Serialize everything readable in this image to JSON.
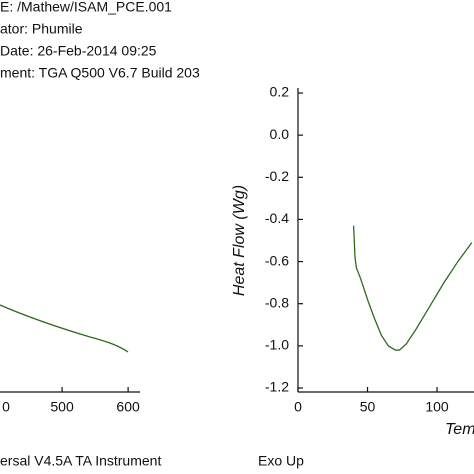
{
  "header": {
    "lines": [
      "E: /Mathew/ISAM_PCE.001",
      "ator: Phumile",
      "Date: 26-Feb-2014 09:25",
      "ment: TGA Q500 V6.7 Build 203"
    ]
  },
  "chart_data": [
    {
      "type": "line",
      "xlim": [
        406,
        618
      ],
      "xticks": [
        {
          "value": 400,
          "label": "0"
        },
        500,
        600
      ]
    },
    {
      "type": "line",
      "ylabel": "Heat Flow (Wg)",
      "xlabel": "Tem",
      "x": [
        40,
        41,
        42,
        45,
        50,
        55,
        60,
        65,
        70,
        73,
        78,
        85,
        95,
        105,
        115,
        125
      ],
      "series": [
        {
          "name": "Heat Flow",
          "color": "#2e6b1f",
          "values": [
            -0.43,
            -0.58,
            -0.63,
            -0.68,
            -0.78,
            -0.87,
            -0.95,
            -1.0,
            -1.02,
            -1.02,
            -0.99,
            -0.92,
            -0.81,
            -0.7,
            -0.6,
            -0.51
          ]
        }
      ],
      "xlim": [
        0,
        126.6
      ],
      "xticks": [
        0,
        50,
        100
      ],
      "ylim": [
        -1.2,
        0.2
      ],
      "yticks": [
        0.2,
        {
          "value": 0,
          "label": "0.0"
        },
        -0.2,
        -0.4,
        -0.6,
        -0.8,
        {
          "value": -1,
          "label": "-1.0"
        },
        -1.2
      ]
    }
  ],
  "footer": {
    "left": "ersal V4.5A TA Instrument",
    "right": "Exo Up"
  }
}
